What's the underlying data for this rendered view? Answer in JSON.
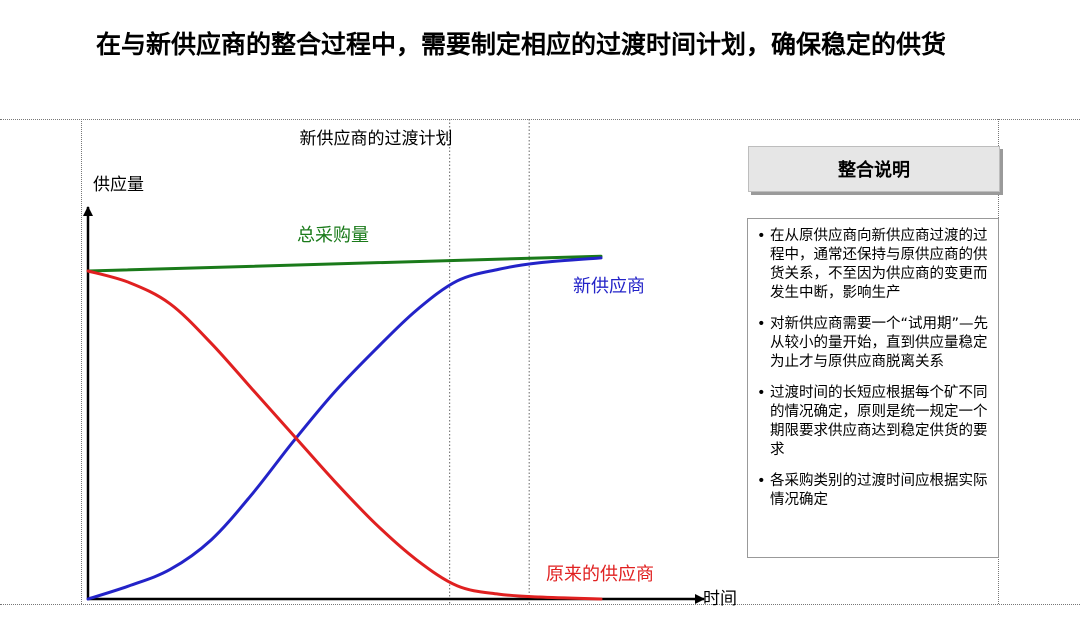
{
  "page": {
    "title": "在与新供应商的整合过程中，需要制定相应的过渡时间计划，确保稳定的供货"
  },
  "panel": {
    "header": "整合说明",
    "notes": [
      "在从原供应商向新供应商过渡的过程中，通常还保持与原供应商的供货关系，不至因为供应商的变更而发生中断，影响生产",
      "对新供应商需要一个“试用期”—先从较小的量开始，直到供应量稳定为止才与原供应商脱离关系",
      "过渡时间的长短应根据每个矿不同的情况确定，原则是统一规定一个期限要求供应商达到稳定供货的要求",
      "各采购类别的过渡时间应根据实际情况确定"
    ]
  },
  "chart_data": {
    "type": "line",
    "title": "新供应商的过渡计划",
    "xlabel": "时间",
    "ylabel": "供应量",
    "xlim": [
      0,
      100
    ],
    "ylim": [
      0,
      100
    ],
    "grid": false,
    "axis_ticks": false,
    "series": [
      {
        "name": "总采购量",
        "color": "#1a7a1a",
        "x": [
          0,
          100
        ],
        "y": [
          100,
          104.5
        ]
      },
      {
        "name": "新供应商",
        "color": "#2323c8",
        "x": [
          0,
          8,
          16,
          24,
          32,
          40,
          48,
          56,
          64,
          72,
          80,
          88,
          100
        ],
        "y": [
          0,
          4,
          9,
          18,
          32,
          48,
          63,
          76,
          88,
          97,
          100.5,
          102.5,
          104
        ]
      },
      {
        "name": "原来的供应商",
        "color": "#e02020",
        "x": [
          0,
          8,
          16,
          24,
          32,
          40,
          48,
          56,
          64,
          72,
          80,
          88,
          100
        ],
        "y": [
          100,
          96.5,
          90,
          78,
          64,
          50,
          36,
          23,
          12,
          4,
          1.5,
          0.6,
          0
        ]
      }
    ],
    "annotations": {
      "boundaries_x": [
        70.5,
        86
      ]
    }
  }
}
